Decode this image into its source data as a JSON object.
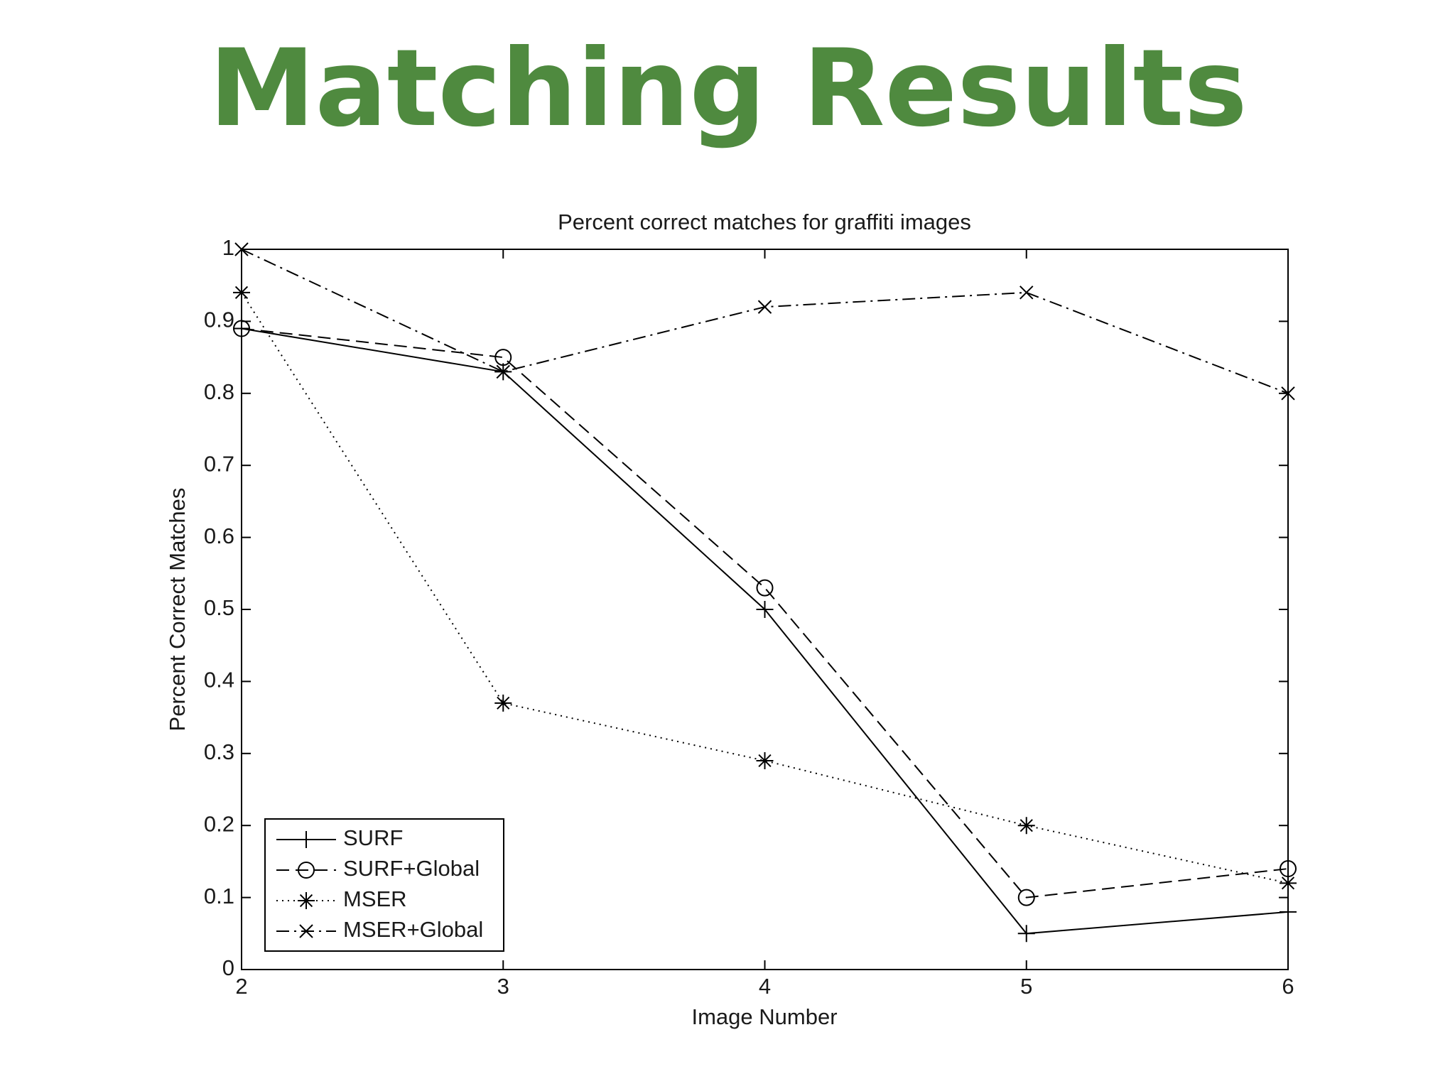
{
  "slide": {
    "title": "Matching Results"
  },
  "chart_data": {
    "type": "line",
    "title": "Percent correct matches for graffiti images",
    "x_label": "Image Number",
    "y_label": "Percent Correct Matches",
    "x": [
      2,
      3,
      4,
      5,
      6
    ],
    "xlim": [
      2,
      6
    ],
    "xticks": [
      2,
      3,
      4,
      5,
      6
    ],
    "ylim": [
      0,
      1
    ],
    "yticks": [
      0,
      0.1,
      0.2,
      0.3,
      0.4,
      0.5,
      0.6,
      0.7,
      0.8,
      0.9,
      1
    ],
    "grid": false,
    "legend_position": "lower-left",
    "series": [
      {
        "name": "SURF",
        "color": "#000000",
        "line_style": "solid",
        "marker": "plus",
        "values": [
          0.89,
          0.83,
          0.5,
          0.05,
          0.08
        ]
      },
      {
        "name": "SURF+Global",
        "color": "#000000",
        "line_style": "dashed",
        "marker": "circle",
        "values": [
          0.89,
          0.85,
          0.53,
          0.1,
          0.14
        ]
      },
      {
        "name": "MSER",
        "color": "#000000",
        "line_style": "dotted",
        "marker": "asterisk",
        "values": [
          0.94,
          0.37,
          0.29,
          0.2,
          0.12
        ]
      },
      {
        "name": "MSER+Global",
        "color": "#000000",
        "line_style": "dashdot",
        "marker": "x",
        "values": [
          1.0,
          0.83,
          0.92,
          0.94,
          0.8
        ]
      }
    ]
  }
}
